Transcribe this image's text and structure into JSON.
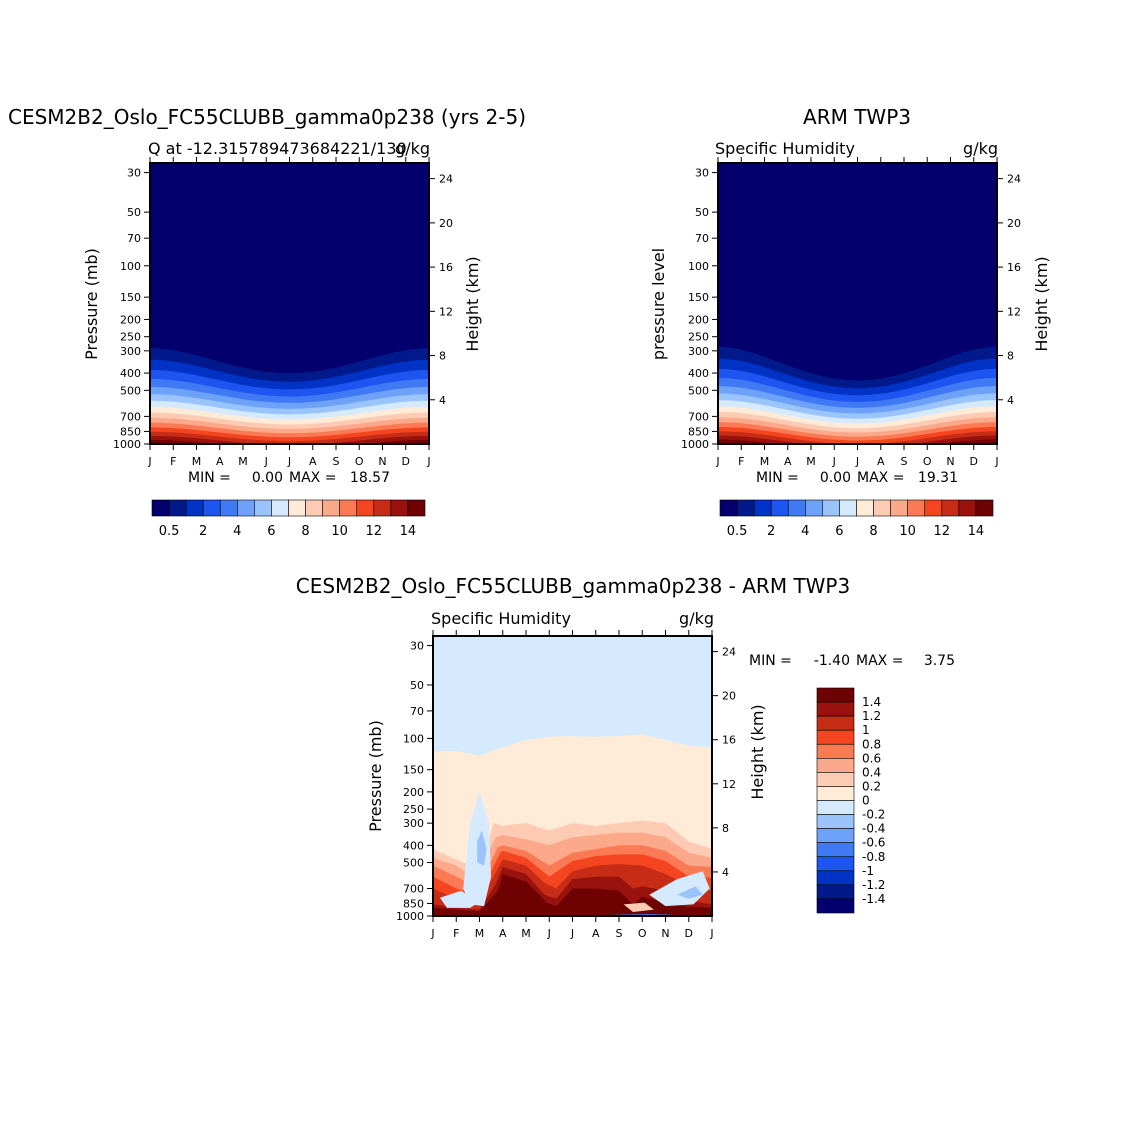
{
  "colors": {
    "seq": [
      "#03006d",
      "#02198b",
      "#0032c6",
      "#1e54ef",
      "#3f79f4",
      "#6ea2f8",
      "#9ac4fb",
      "#d6eafd",
      "#feecd9",
      "#fdcbb3",
      "#fca98b",
      "#fa7a55",
      "#f44520",
      "#c72c17",
      "#99120d",
      "#6e0203"
    ],
    "div": [
      "#03006d",
      "#02198b",
      "#0032c6",
      "#1e54ef",
      "#3f79f4",
      "#6ea2f8",
      "#9ac4fb",
      "#d6eafd",
      "#feecd9",
      "#fdcbb3",
      "#fca98b",
      "#fa7a55",
      "#f44520",
      "#c72c17",
      "#99120d",
      "#6e0203"
    ]
  },
  "chart_data": [
    {
      "type": "heatmap",
      "title": "CESM2B2_Oslo_FC55CLUBB_gamma0p238 (yrs 2-5)",
      "subtitle_left": "Q at -12.315789473684221/130",
      "subtitle_right": "g/kg",
      "ylabel": "Pressure (mb)",
      "ylabel_right": "Height (km)",
      "x_ticks": [
        "J",
        "F",
        "M",
        "A",
        "M",
        "J",
        "J",
        "A",
        "S",
        "O",
        "N",
        "D",
        "J"
      ],
      "y_ticks": [
        "30",
        "50",
        "70",
        "100",
        "150",
        "200",
        "250",
        "300",
        "400",
        "500",
        "700",
        "850",
        "1000"
      ],
      "y_ticks_right": [
        "24",
        "20",
        "16",
        "12",
        "8",
        "4"
      ],
      "min_label": "MIN =",
      "min_value": "0.00",
      "max_label": "MAX =",
      "max_value": "18.57",
      "colorbar_labels": [
        "0.5",
        "2",
        "4",
        "6",
        "8",
        "10",
        "12",
        "14"
      ],
      "field": "model",
      "bands": [
        [
          0.01,
          0.03,
          0.01
        ],
        [
          0.03,
          0.06,
          0.02
        ],
        [
          0.06,
          0.09,
          0.03
        ],
        [
          0.09,
          0.13,
          0.05
        ],
        [
          0.13,
          0.17,
          0.07
        ],
        [
          0.17,
          0.22,
          0.1
        ],
        [
          0.22,
          0.28,
          0.13
        ],
        [
          0.28,
          0.35,
          0.17
        ],
        [
          0.35,
          0.43,
          0.22
        ],
        [
          0.43,
          0.52,
          0.28
        ],
        [
          0.52,
          0.62,
          0.35
        ],
        [
          0.62,
          0.73,
          0.45
        ],
        [
          0.73,
          0.85,
          0.58
        ],
        [
          0.85,
          1.0,
          0.75
        ],
        [
          1.0,
          1.2,
          1.0
        ]
      ]
    },
    {
      "type": "heatmap",
      "title": "ARM TWP3",
      "subtitle_left": "Specific Humidity",
      "subtitle_right": "g/kg",
      "ylabel": "pressure level",
      "ylabel_right": "Height (km)",
      "x_ticks": [
        "J",
        "F",
        "M",
        "A",
        "M",
        "J",
        "J",
        "A",
        "S",
        "O",
        "N",
        "D",
        "J"
      ],
      "y_ticks": [
        "30",
        "50",
        "70",
        "100",
        "150",
        "200",
        "250",
        "300",
        "400",
        "500",
        "700",
        "850",
        "1000"
      ],
      "y_ticks_right": [
        "24",
        "20",
        "16",
        "12",
        "8",
        "4"
      ],
      "min_label": "MIN =",
      "min_value": "0.00",
      "max_label": "MAX =",
      "max_value": "19.31",
      "colorbar_labels": [
        "0.5",
        "2",
        "4",
        "6",
        "8",
        "10",
        "12",
        "14"
      ],
      "field": "obs"
    },
    {
      "type": "heatmap",
      "title": "CESM2B2_Oslo_FC55CLUBB_gamma0p238 - ARM TWP3",
      "subtitle_left": "Specific Humidity",
      "subtitle_right": "g/kg",
      "ylabel": "Pressure (mb)",
      "ylabel_right": "Height (km)",
      "x_ticks": [
        "J",
        "F",
        "M",
        "A",
        "M",
        "J",
        "J",
        "A",
        "S",
        "O",
        "N",
        "D",
        "J"
      ],
      "y_ticks": [
        "30",
        "50",
        "70",
        "100",
        "150",
        "200",
        "250",
        "300",
        "400",
        "500",
        "700",
        "850",
        "1000"
      ],
      "y_ticks_right": [
        "24",
        "20",
        "16",
        "12",
        "8",
        "4"
      ],
      "min_label": "MIN =",
      "min_value": "-1.40",
      "max_label": "MAX =",
      "max_value": "3.75",
      "colorbar_labels": [
        "1.4",
        "1.2",
        "1",
        "0.8",
        "0.6",
        "0.4",
        "0.2",
        "0",
        "-0.2",
        "-0.4",
        "-0.6",
        "-0.8",
        "-1",
        "-1.2",
        "-1.4"
      ],
      "field": "diff"
    }
  ]
}
